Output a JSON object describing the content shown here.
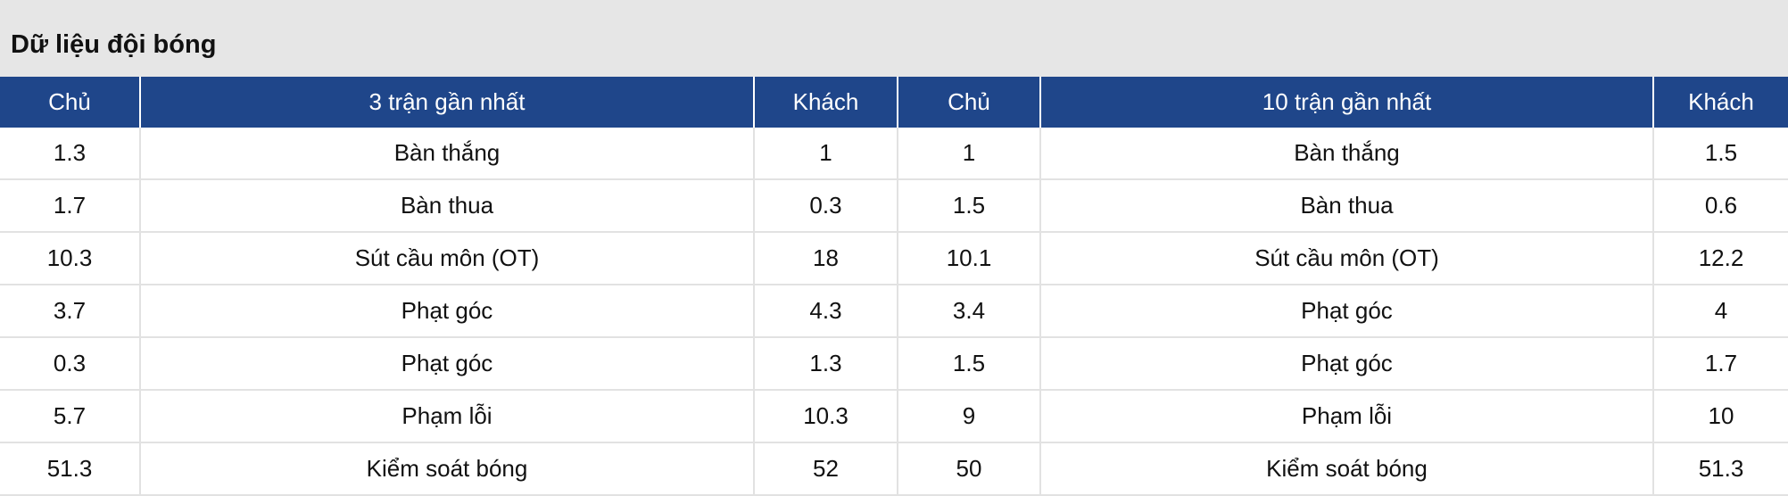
{
  "title": "Dữ liệu đội bóng",
  "colors": {
    "header_bg": "#1f468a",
    "page_bg": "#e6e6e6"
  },
  "headers": [
    "Chủ",
    "3 trận gần nhất",
    "Khách",
    "Chủ",
    "10 trận gần nhất",
    "Khách"
  ],
  "rows": [
    [
      "1.3",
      "Bàn thắng",
      "1",
      "1",
      "Bàn thắng",
      "1.5"
    ],
    [
      "1.7",
      "Bàn thua",
      "0.3",
      "1.5",
      "Bàn thua",
      "0.6"
    ],
    [
      "10.3",
      "Sút cầu môn (OT)",
      "18",
      "10.1",
      "Sút cầu môn (OT)",
      "12.2"
    ],
    [
      "3.7",
      "Phạt góc",
      "4.3",
      "3.4",
      "Phạt góc",
      "4"
    ],
    [
      "0.3",
      "Phạt góc",
      "1.3",
      "1.5",
      "Phạt góc",
      "1.7"
    ],
    [
      "5.7",
      "Phạm lỗi",
      "10.3",
      "9",
      "Phạm lỗi",
      "10"
    ],
    [
      "51.3",
      "Kiểm soát bóng",
      "52",
      "50",
      "Kiểm soát bóng",
      "51.3"
    ]
  ]
}
